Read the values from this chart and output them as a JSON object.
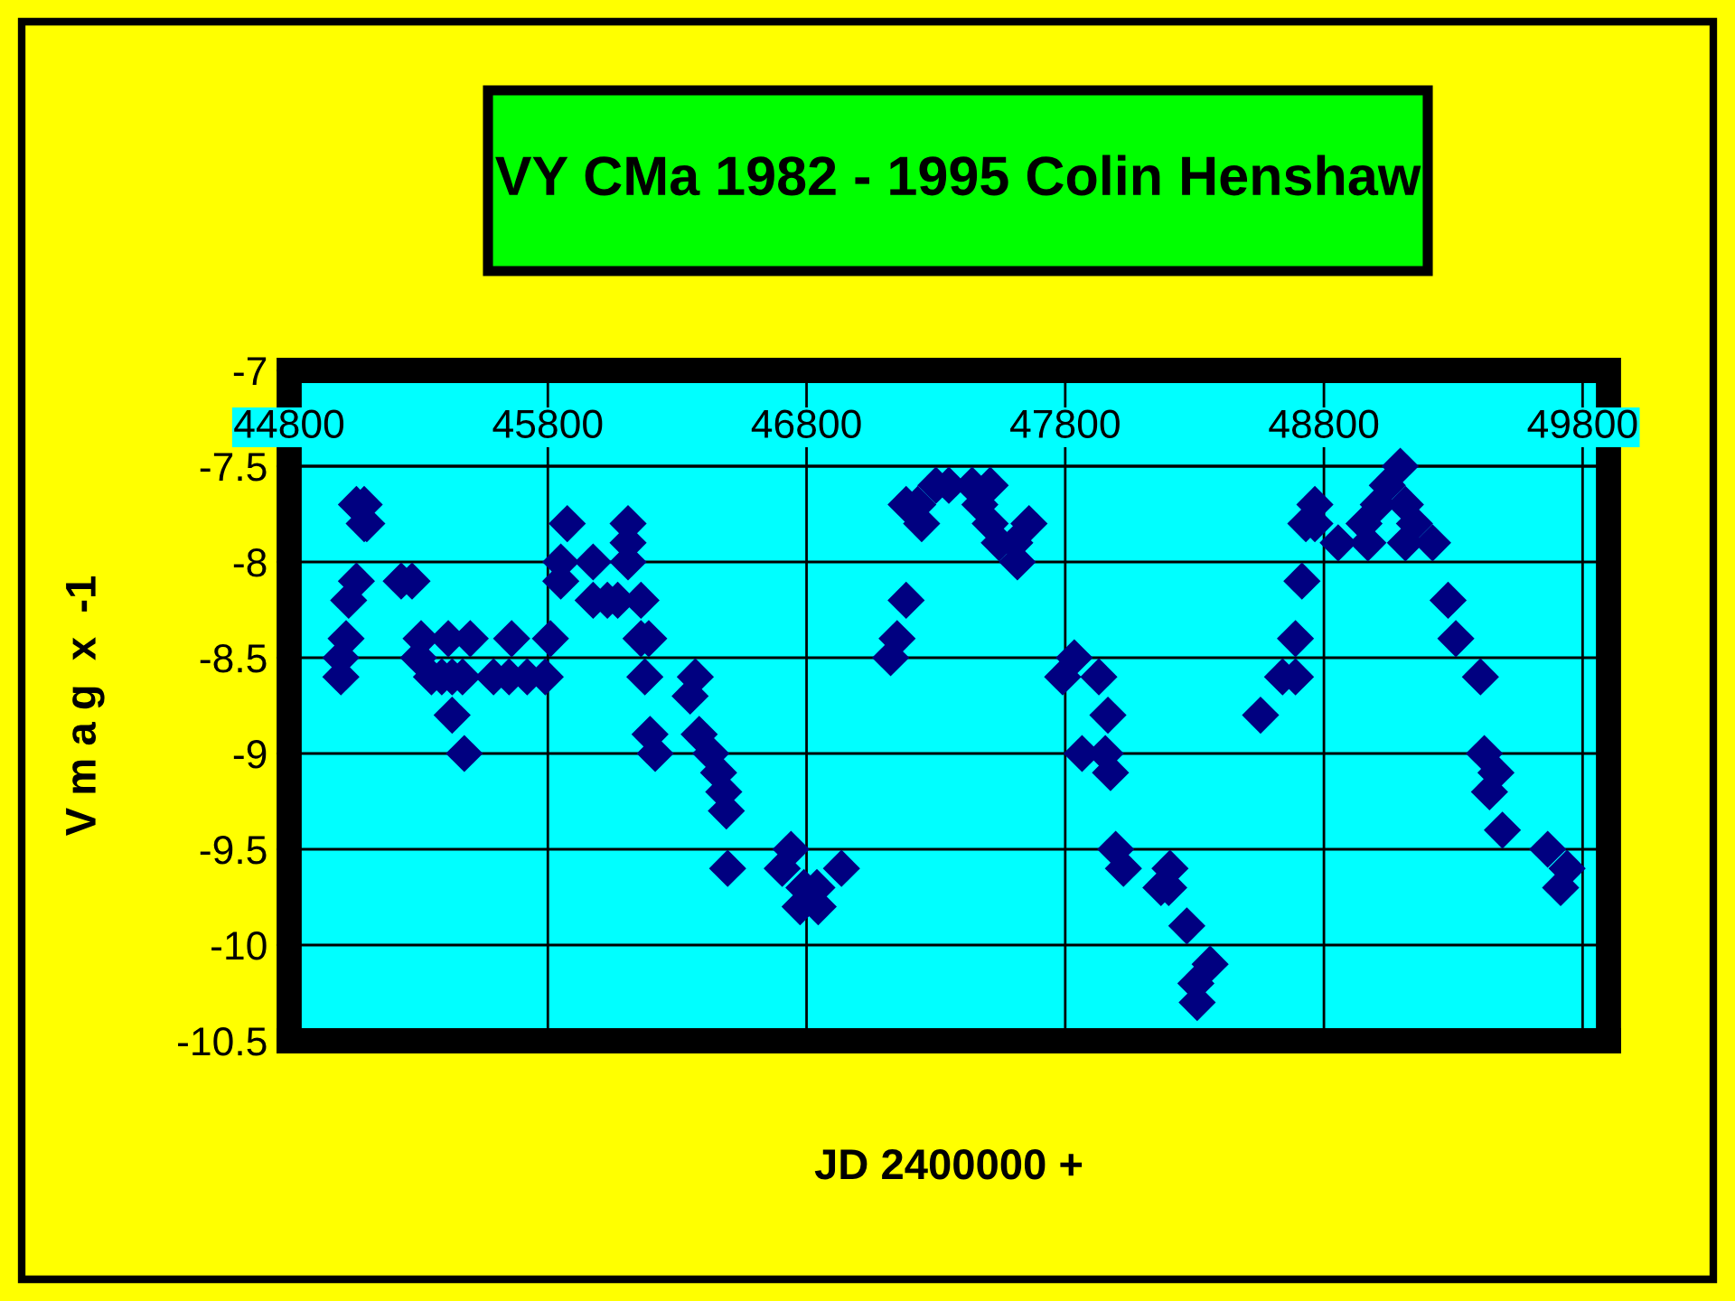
{
  "chart_data": {
    "type": "scatter",
    "title": "VY CMa 1982 - 1995 Colin Henshaw",
    "xlabel": "JD 2400000 +",
    "ylabel": "V m a g  x  -1",
    "xlim": [
      44800,
      49900
    ],
    "xticks": [
      44800,
      45800,
      46800,
      47800,
      48800,
      49800
    ],
    "ylim": [
      -10.5,
      -7
    ],
    "yticks": [
      -7,
      -7.5,
      -8,
      -8.5,
      -9,
      -9.5,
      -10,
      -10.5
    ],
    "grid": true,
    "marker": "diamond",
    "series": [
      {
        "color": "#000080",
        "x": [
          45090,
          45090,
          45060,
          45100,
          45060,
          45030,
          45020,
          45000,
          45000,
          45233,
          45275,
          45310,
          45300,
          45350,
          45390,
          45415,
          45500,
          45430,
          45470,
          45430,
          45477,
          45660,
          45590,
          45650,
          45720,
          45790,
          45810,
          45850,
          45850,
          45875,
          45975,
          45975,
          46030,
          46070,
          46110,
          46110,
          46110,
          46160,
          46160,
          46190,
          46175,
          46195,
          46215,
          46350,
          46370,
          46385,
          46430,
          46460,
          46480,
          46490,
          46495,
          46706,
          46740,
          46790,
          46840,
          46775,
          46845,
          46935,
          47125,
          47150,
          47185,
          47185,
          47230,
          47245,
          47300,
          47350,
          47440,
          47510,
          47470,
          47510,
          47545,
          47605,
          47615,
          47660,
          47790,
          47835,
          47930,
          47965,
          47865,
          47955,
          47975,
          47995,
          48025,
          48170,
          48205,
          48200,
          48270,
          48360,
          48305,
          48310,
          48555,
          48640,
          48690,
          48690,
          48715,
          48730,
          48765,
          48765,
          48855,
          48955,
          48970,
          49010,
          49045,
          49095,
          49115,
          49150,
          49115,
          49220,
          49280,
          49310,
          49405,
          49420,
          49465,
          49440,
          49490,
          49665,
          49740,
          49715
        ],
        "values": [
          -7.7,
          -7.8,
          -7.7,
          -7.8,
          -8.1,
          -8.2,
          -8.4,
          -8.5,
          -8.6,
          -8.1,
          -8.1,
          -8.4,
          -8.5,
          -8.6,
          -8.6,
          -8.4,
          -8.4,
          -8.6,
          -8.6,
          -8.8,
          -9.0,
          -8.4,
          -8.6,
          -8.6,
          -8.6,
          -8.6,
          -8.4,
          -8.1,
          -8.0,
          -7.8,
          -8.0,
          -8.2,
          -8.2,
          -8.2,
          -7.8,
          -7.9,
          -8.0,
          -8.2,
          -8.4,
          -8.4,
          -8.6,
          -8.9,
          -9.0,
          -8.7,
          -8.6,
          -8.9,
          -9.0,
          -9.1,
          -9.2,
          -9.3,
          -9.6,
          -9.6,
          -9.5,
          -9.7,
          -9.7,
          -9.8,
          -9.8,
          -9.6,
          -8.5,
          -8.4,
          -8.2,
          -7.7,
          -7.7,
          -7.8,
          -7.6,
          -7.6,
          -7.6,
          -7.6,
          -7.7,
          -7.8,
          -7.9,
          -7.9,
          -8.0,
          -7.8,
          -8.6,
          -8.5,
          -8.6,
          -8.8,
          -9.0,
          -9.0,
          -9.1,
          -9.5,
          -9.6,
          -9.7,
          -9.6,
          -9.7,
          -9.9,
          -10.1,
          -10.2,
          -10.3,
          -8.8,
          -8.6,
          -8.6,
          -8.4,
          -8.1,
          -7.8,
          -7.7,
          -7.8,
          -7.9,
          -7.8,
          -7.9,
          -7.7,
          -7.6,
          -7.5,
          -7.7,
          -7.8,
          -7.9,
          -7.9,
          -8.2,
          -8.4,
          -8.6,
          -9.0,
          -9.1,
          -9.2,
          -9.4,
          -9.5,
          -9.6,
          -9.7
        ]
      }
    ]
  }
}
